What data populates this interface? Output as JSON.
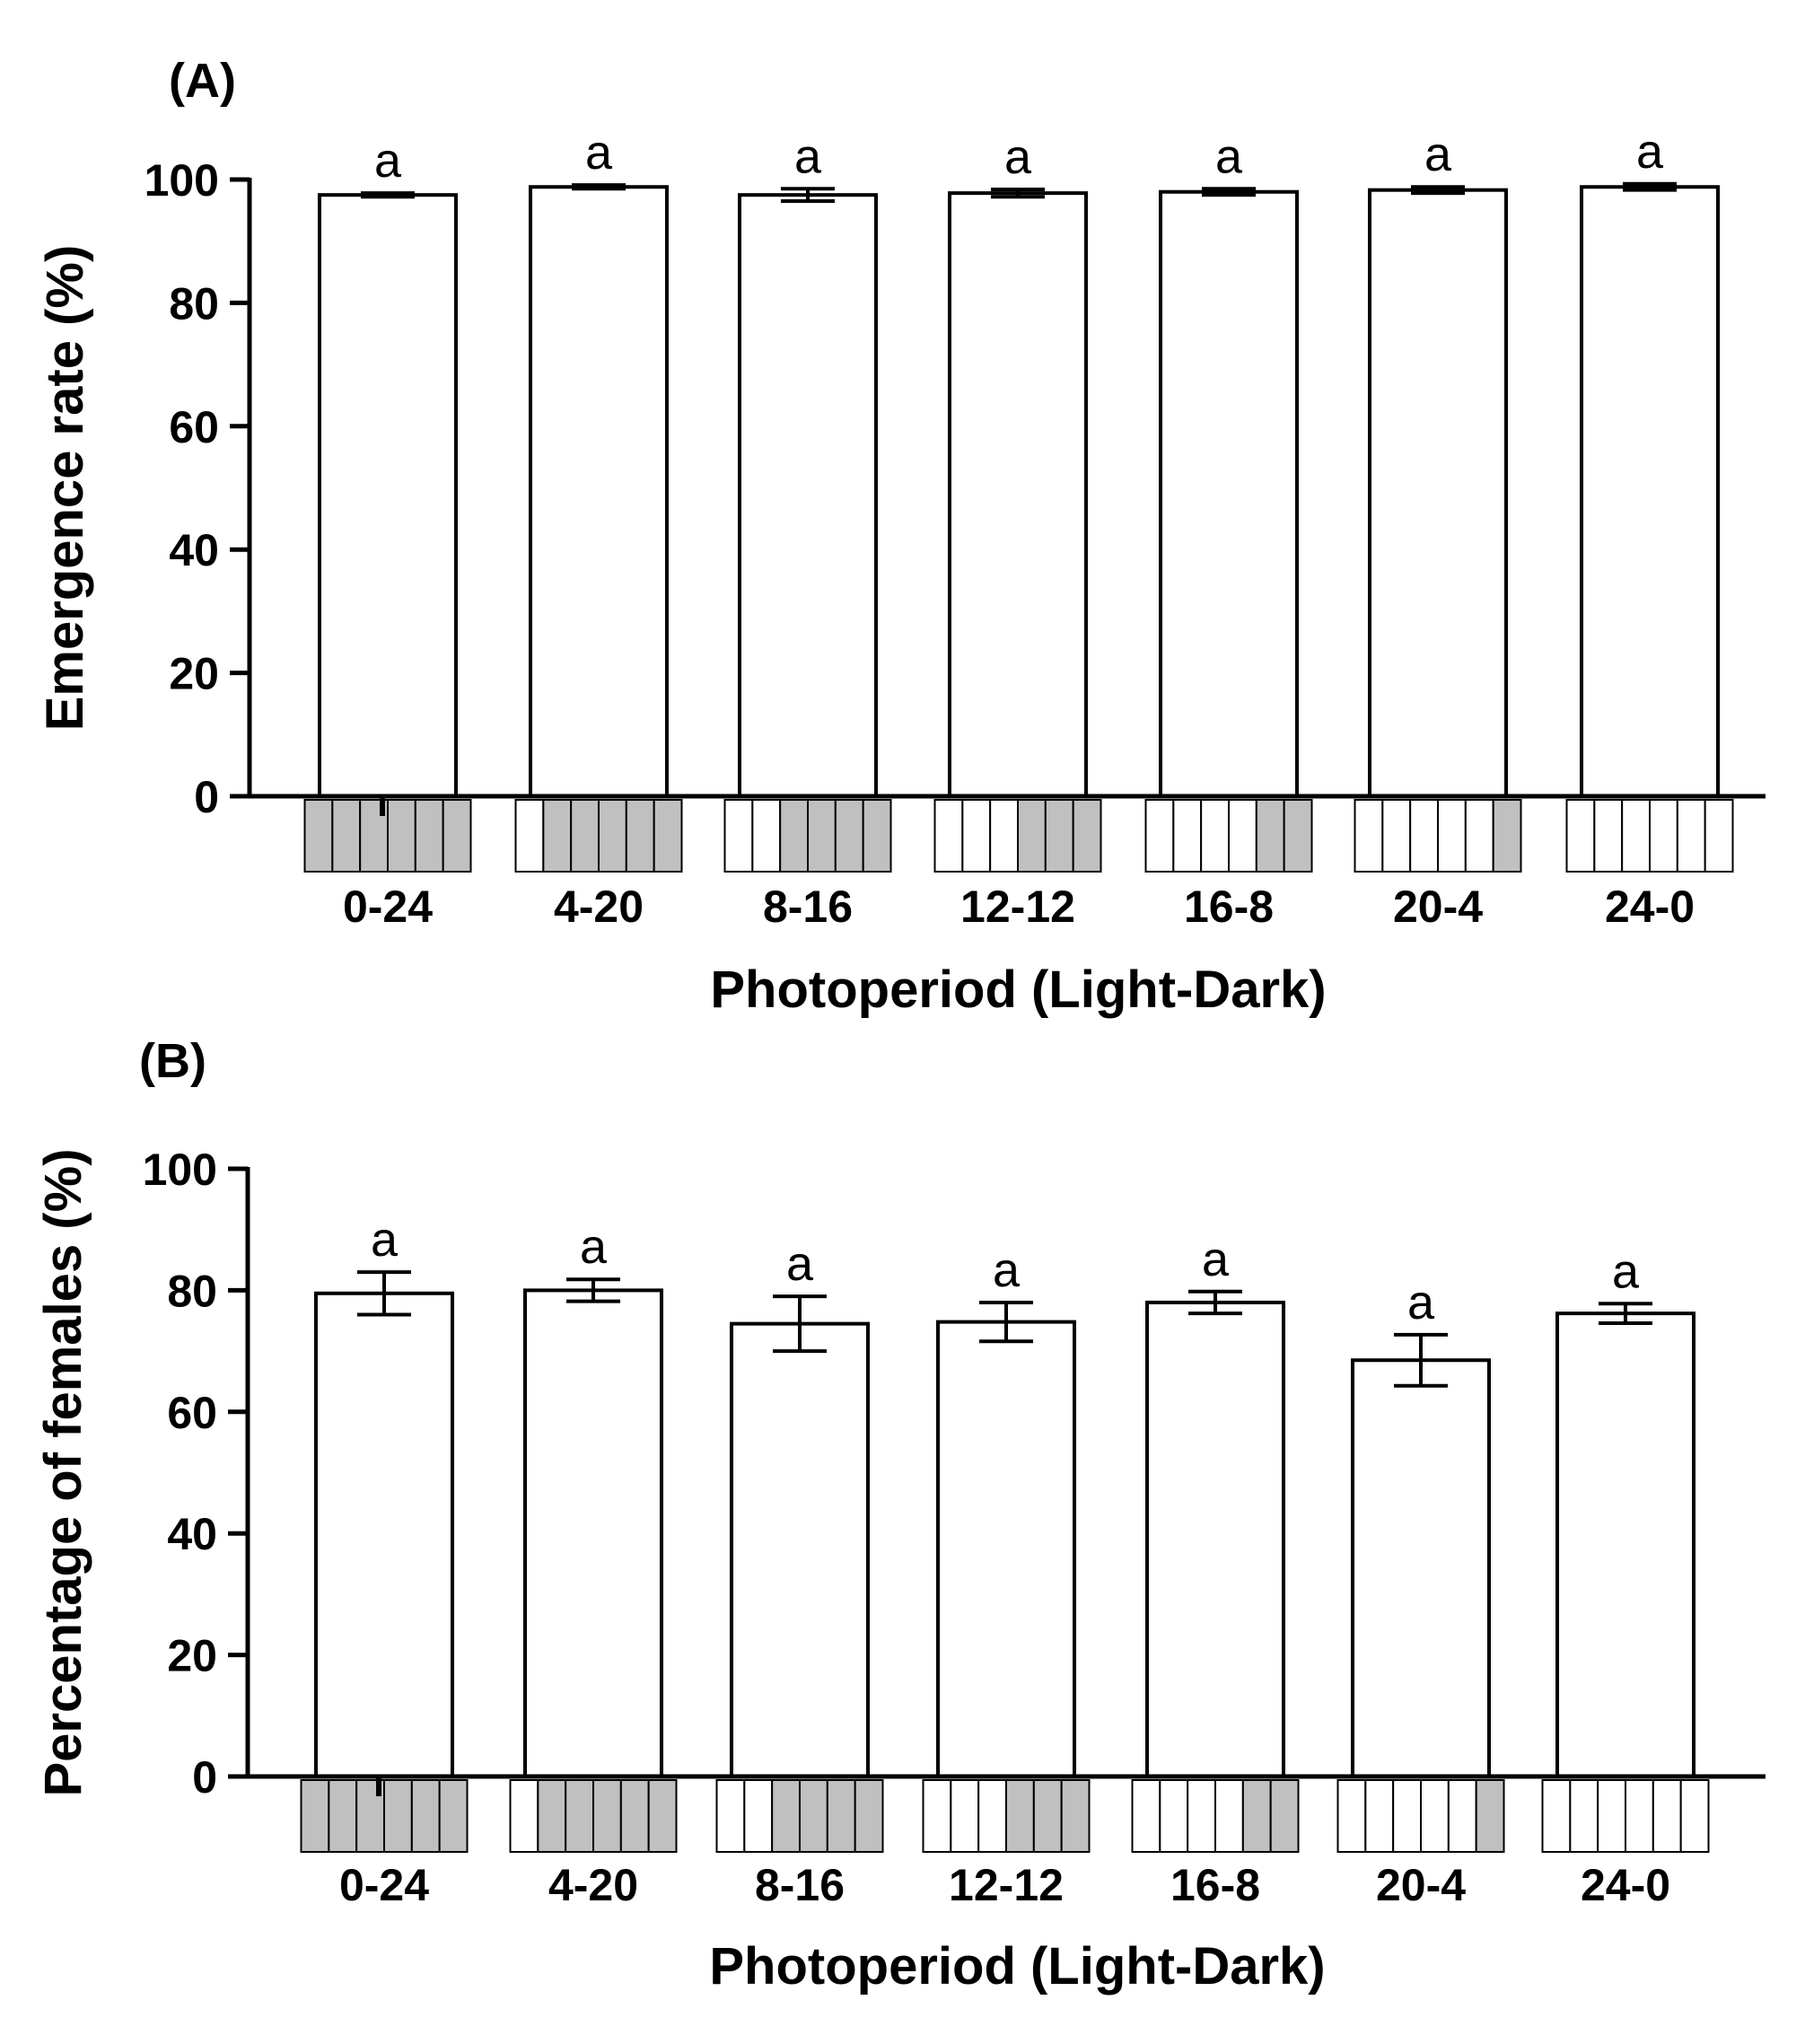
{
  "chart_data": [
    {
      "type": "bar",
      "panel_label": "(A)",
      "categories": [
        "0-24",
        "4-20",
        "8-16",
        "12-12",
        "16-8",
        "20-4",
        "24-0"
      ],
      "values": [
        97.5,
        98.8,
        97.5,
        97.8,
        98.0,
        98.3,
        98.8
      ],
      "errors": [
        0.3,
        0.3,
        1.0,
        0.6,
        0.5,
        0.5,
        0.5
      ],
      "significance": [
        "a",
        "a",
        "a",
        "a",
        "a",
        "a",
        "a"
      ],
      "light_hours": [
        0,
        4,
        8,
        12,
        16,
        20,
        24
      ],
      "ylim": [
        0,
        100
      ],
      "yticks": [
        0,
        20,
        40,
        60,
        80,
        100
      ],
      "xlabel": "Photoperiod (Light-Dark)",
      "ylabel": "Emergence rate (%)",
      "bar_color": "#ffffff",
      "dark_color": "#c0c0c0"
    },
    {
      "type": "bar",
      "panel_label": "(B)",
      "categories": [
        "0-24",
        "4-20",
        "8-16",
        "12-12",
        "16-8",
        "20-4",
        "24-0"
      ],
      "values": [
        79.5,
        80.0,
        74.5,
        74.8,
        78.0,
        68.5,
        76.2
      ],
      "errors": [
        3.5,
        1.8,
        4.5,
        3.2,
        1.8,
        4.2,
        1.6
      ],
      "significance": [
        "a",
        "a",
        "a",
        "a",
        "a",
        "a",
        "a"
      ],
      "light_hours": [
        0,
        4,
        8,
        12,
        16,
        20,
        24
      ],
      "ylim": [
        0,
        100
      ],
      "yticks": [
        0,
        20,
        40,
        60,
        80,
        100
      ],
      "xlabel": "Photoperiod (Light-Dark)",
      "ylabel": "Percentage of females (%)",
      "bar_color": "#ffffff",
      "dark_color": "#c0c0c0"
    }
  ]
}
